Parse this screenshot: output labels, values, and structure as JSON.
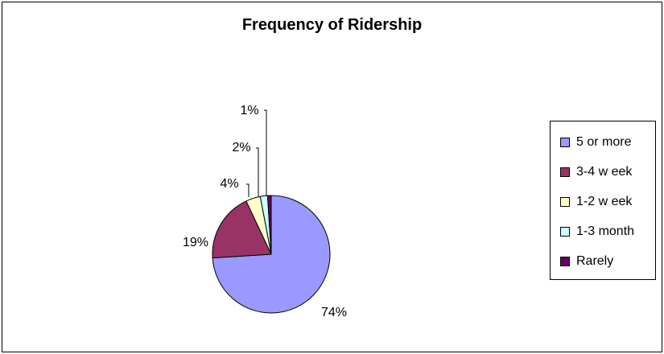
{
  "chart_data": {
    "type": "pie",
    "title": "Frequency of Ridership",
    "categories": [
      "5 or more",
      "3-4 w eek",
      "1-2 w eek",
      "1-3 month",
      "Rarely"
    ],
    "values": [
      74,
      19,
      4,
      2,
      1
    ],
    "labels": [
      "74%",
      "19%",
      "4%",
      "2%",
      "1%"
    ],
    "colors": [
      "#9999ff",
      "#993366",
      "#ffffcc",
      "#ccffff",
      "#660066"
    ],
    "legend": "right",
    "grid": false
  }
}
